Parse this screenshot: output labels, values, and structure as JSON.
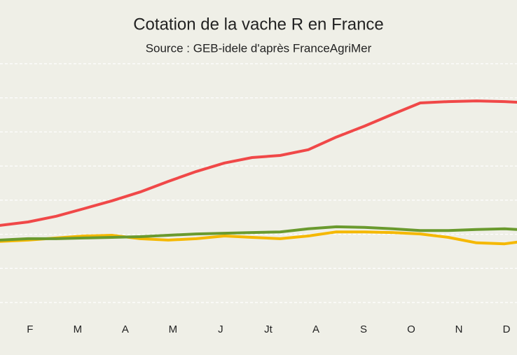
{
  "chart_data": {
    "type": "line",
    "title": "Cotation de la vache R en France",
    "subtitle": "Source : GEB-idele d'après FranceAgriMer",
    "x": [
      1.37,
      1.96,
      2.55,
      3.13,
      3.72,
      4.31,
      4.9,
      5.49,
      6.08,
      6.66,
      7.25,
      7.84,
      8.43,
      9.02,
      9.61,
      10.19,
      10.78,
      11.37,
      11.96,
      12.22
    ],
    "xlim": [
      1.37,
      12.22
    ],
    "xticks": [
      {
        "value": 2,
        "label": "F"
      },
      {
        "value": 3,
        "label": "M"
      },
      {
        "value": 4,
        "label": "A"
      },
      {
        "value": 5,
        "label": "M"
      },
      {
        "value": 6,
        "label": "J"
      },
      {
        "value": 7,
        "label": "Jt"
      },
      {
        "value": 8,
        "label": "A"
      },
      {
        "value": 9,
        "label": "S"
      },
      {
        "value": 10,
        "label": "O"
      },
      {
        "value": 11,
        "label": "N"
      },
      {
        "value": 12,
        "label": "D"
      }
    ],
    "ylim": [
      0,
      7
    ],
    "yticks": [
      0,
      1,
      2,
      3,
      4,
      5,
      6,
      7
    ],
    "grid": true,
    "series": [
      {
        "color": "#f04848",
        "values": [
          2.26,
          2.36,
          2.53,
          2.75,
          2.98,
          3.24,
          3.55,
          3.84,
          4.09,
          4.25,
          4.31,
          4.48,
          4.85,
          5.17,
          5.52,
          5.85,
          5.89,
          5.91,
          5.89,
          5.87
        ]
      },
      {
        "color": "#f5b800",
        "values": [
          1.79,
          1.83,
          1.89,
          1.95,
          1.97,
          1.87,
          1.83,
          1.87,
          1.95,
          1.91,
          1.87,
          1.95,
          2.07,
          2.07,
          2.05,
          2.01,
          1.91,
          1.75,
          1.72,
          1.77
        ]
      },
      {
        "color": "#6a9a2e",
        "values": [
          1.83,
          1.87,
          1.87,
          1.89,
          1.91,
          1.93,
          1.97,
          2.01,
          2.03,
          2.05,
          2.07,
          2.16,
          2.22,
          2.2,
          2.16,
          2.11,
          2.11,
          2.14,
          2.16,
          2.14
        ]
      }
    ]
  }
}
